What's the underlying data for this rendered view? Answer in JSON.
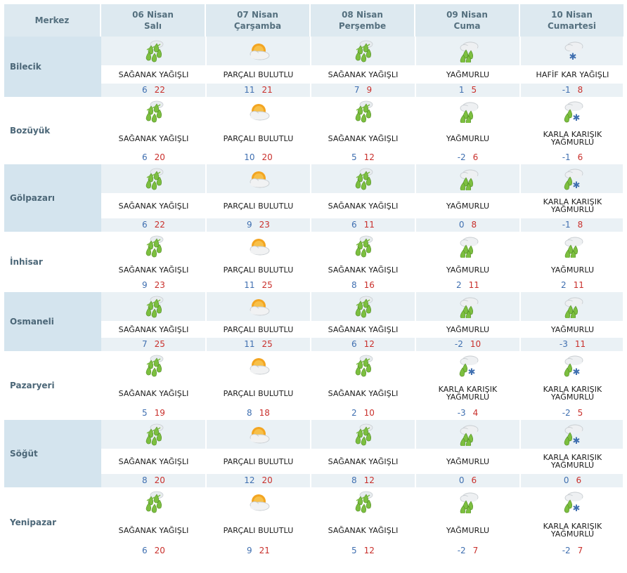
{
  "header": {
    "merkez_label": "Merkez",
    "days": [
      {
        "date": "06 Nisan",
        "weekday": "Salı"
      },
      {
        "date": "07 Nisan",
        "weekday": "Çarşamba"
      },
      {
        "date": "08 Nisan",
        "weekday": "Perşembe"
      },
      {
        "date": "09 Nisan",
        "weekday": "Cuma"
      },
      {
        "date": "10 Nisan",
        "weekday": "Cumartesi"
      }
    ]
  },
  "rows": [
    {
      "city": "Bilecik",
      "shaded": true,
      "days": [
        {
          "icon": "heavy-rain-icon",
          "condition": "SAĞANAK YAĞIŞLI",
          "min": "6",
          "max": "22"
        },
        {
          "icon": "partly-cloudy-icon",
          "condition": "PARÇALI BULUTLU",
          "min": "11",
          "max": "21"
        },
        {
          "icon": "heavy-rain-icon",
          "condition": "SAĞANAK YAĞIŞLI",
          "min": "7",
          "max": "9"
        },
        {
          "icon": "rain-icon",
          "condition": "YAĞMURLU",
          "min": "1",
          "max": "5"
        },
        {
          "icon": "light-snow-icon",
          "condition": "HAFİF KAR YAĞIŞLI",
          "min": "-1",
          "max": "8"
        }
      ]
    },
    {
      "city": "Bozüyük",
      "shaded": false,
      "days": [
        {
          "icon": "heavy-rain-icon",
          "condition": "SAĞANAK YAĞIŞLI",
          "min": "6",
          "max": "20"
        },
        {
          "icon": "partly-cloudy-icon",
          "condition": "PARÇALI BULUTLU",
          "min": "10",
          "max": "20"
        },
        {
          "icon": "heavy-rain-icon",
          "condition": "SAĞANAK YAĞIŞLI",
          "min": "5",
          "max": "12"
        },
        {
          "icon": "rain-icon",
          "condition": "YAĞMURLU",
          "min": "-2",
          "max": "6"
        },
        {
          "icon": "sleet-icon",
          "condition": "KARLA KARIŞIK YAĞMURLU",
          "min": "-1",
          "max": "6"
        }
      ]
    },
    {
      "city": "Gölpazarı",
      "shaded": true,
      "days": [
        {
          "icon": "heavy-rain-icon",
          "condition": "SAĞANAK YAĞIŞLI",
          "min": "6",
          "max": "22"
        },
        {
          "icon": "partly-cloudy-icon",
          "condition": "PARÇALI BULUTLU",
          "min": "9",
          "max": "23"
        },
        {
          "icon": "heavy-rain-icon",
          "condition": "SAĞANAK YAĞIŞLI",
          "min": "6",
          "max": "11"
        },
        {
          "icon": "rain-icon",
          "condition": "YAĞMURLU",
          "min": "0",
          "max": "8"
        },
        {
          "icon": "sleet-icon",
          "condition": "KARLA KARIŞIK YAĞMURLU",
          "min": "-1",
          "max": "8"
        }
      ]
    },
    {
      "city": "İnhisar",
      "shaded": false,
      "days": [
        {
          "icon": "heavy-rain-icon",
          "condition": "SAĞANAK YAĞIŞLI",
          "min": "9",
          "max": "23"
        },
        {
          "icon": "partly-cloudy-icon",
          "condition": "PARÇALI BULUTLU",
          "min": "11",
          "max": "25"
        },
        {
          "icon": "heavy-rain-icon",
          "condition": "SAĞANAK YAĞIŞLI",
          "min": "8",
          "max": "16"
        },
        {
          "icon": "rain-icon",
          "condition": "YAĞMURLU",
          "min": "2",
          "max": "11"
        },
        {
          "icon": "rain-icon",
          "condition": "YAĞMURLU",
          "min": "2",
          "max": "11"
        }
      ]
    },
    {
      "city": "Osmaneli",
      "shaded": true,
      "days": [
        {
          "icon": "heavy-rain-icon",
          "condition": "SAĞANAK YAĞIŞLI",
          "min": "7",
          "max": "25"
        },
        {
          "icon": "partly-cloudy-icon",
          "condition": "PARÇALI BULUTLU",
          "min": "11",
          "max": "25"
        },
        {
          "icon": "heavy-rain-icon",
          "condition": "SAĞANAK YAĞIŞLI",
          "min": "6",
          "max": "12"
        },
        {
          "icon": "rain-icon",
          "condition": "YAĞMURLU",
          "min": "-2",
          "max": "10"
        },
        {
          "icon": "rain-icon",
          "condition": "YAĞMURLU",
          "min": "-3",
          "max": "11"
        }
      ]
    },
    {
      "city": "Pazaryeri",
      "shaded": false,
      "days": [
        {
          "icon": "heavy-rain-icon",
          "condition": "SAĞANAK YAĞIŞLI",
          "min": "5",
          "max": "19"
        },
        {
          "icon": "partly-cloudy-icon",
          "condition": "PARÇALI BULUTLU",
          "min": "8",
          "max": "18"
        },
        {
          "icon": "heavy-rain-icon",
          "condition": "SAĞANAK YAĞIŞLI",
          "min": "2",
          "max": "10"
        },
        {
          "icon": "sleet-icon",
          "condition": "KARLA KARIŞIK YAĞMURLU",
          "min": "-3",
          "max": "4"
        },
        {
          "icon": "sleet-icon",
          "condition": "KARLA KARIŞIK YAĞMURLU",
          "min": "-2",
          "max": "5"
        }
      ]
    },
    {
      "city": "Söğüt",
      "shaded": true,
      "days": [
        {
          "icon": "heavy-rain-icon",
          "condition": "SAĞANAK YAĞIŞLI",
          "min": "8",
          "max": "20"
        },
        {
          "icon": "partly-cloudy-icon",
          "condition": "PARÇALI BULUTLU",
          "min": "12",
          "max": "20"
        },
        {
          "icon": "heavy-rain-icon",
          "condition": "SAĞANAK YAĞIŞLI",
          "min": "8",
          "max": "12"
        },
        {
          "icon": "rain-icon",
          "condition": "YAĞMURLU",
          "min": "0",
          "max": "6"
        },
        {
          "icon": "sleet-icon",
          "condition": "KARLA KARIŞIK YAĞMURLU",
          "min": "0",
          "max": "6"
        }
      ]
    },
    {
      "city": "Yenipazar",
      "shaded": false,
      "days": [
        {
          "icon": "heavy-rain-icon",
          "condition": "SAĞANAK YAĞIŞLI",
          "min": "6",
          "max": "20"
        },
        {
          "icon": "partly-cloudy-icon",
          "condition": "PARÇALI BULUTLU",
          "min": "9",
          "max": "21"
        },
        {
          "icon": "heavy-rain-icon",
          "condition": "SAĞANAK YAĞIŞLI",
          "min": "5",
          "max": "12"
        },
        {
          "icon": "rain-icon",
          "condition": "YAĞMURLU",
          "min": "-2",
          "max": "7"
        },
        {
          "icon": "sleet-icon",
          "condition": "KARLA KARIŞIK YAĞMURLU",
          "min": "-2",
          "max": "7"
        }
      ]
    }
  ],
  "colors": {
    "header_bg": "#dde9f0",
    "shaded_bg": "#eaf1f5",
    "city_shaded_bg": "#d4e4ee",
    "min_temp": "#3f6fb0",
    "max_temp": "#c9302c",
    "rain_green": "#7cbf3f",
    "cloud_gray": "#c9ced2",
    "sun_orange": "#f3a521"
  }
}
